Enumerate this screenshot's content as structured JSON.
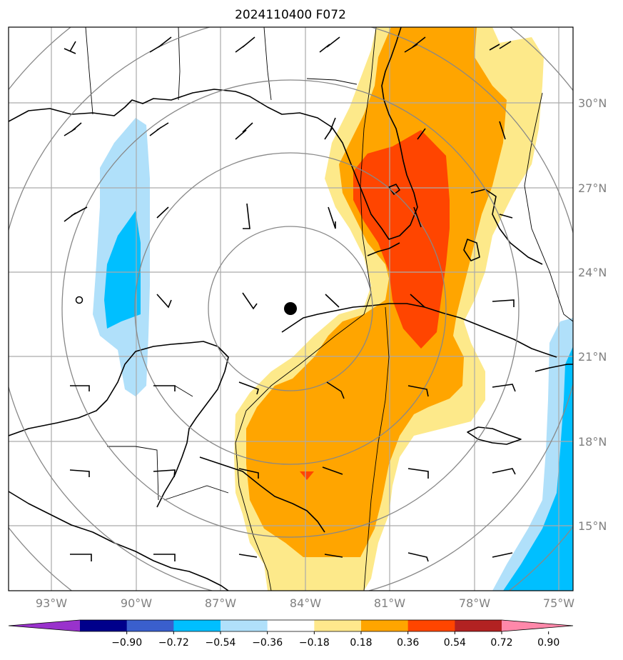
{
  "title": "2024110400 F072",
  "longitude_labels": [
    "93°W",
    "90°W",
    "87°W",
    "84°W",
    "81°W",
    "78°W",
    "75°W"
  ],
  "latitude_labels": [
    "30°N",
    "27°N",
    "24°N",
    "21°N",
    "18°N",
    "15°N"
  ],
  "colorbar": {
    "ticks": [
      "−0.90",
      "−0.72",
      "−0.54",
      "−0.36",
      "−0.18",
      "0.18",
      "0.36",
      "0.54",
      "0.72",
      "0.90"
    ],
    "colors": [
      "#9932cc",
      "#00008b",
      "#3a5fcd",
      "#00bfff",
      "#b0e0fa",
      "#ffffff",
      "#ffe88c",
      "#ffa500",
      "#ff4500",
      "#b22222",
      "#ff88aa"
    ]
  },
  "colors": {
    "light_yellow": "#fde98a",
    "orange": "#ffa500",
    "red_orange": "#ff4500",
    "light_blue": "#b0e0fa",
    "deep_sky_blue": "#00bfff",
    "grid": "#aaaaaa",
    "range_ring": "#888888"
  },
  "storm_center_marker": "filled-black-circle",
  "wind_barbs": "black-wind-barbs"
}
